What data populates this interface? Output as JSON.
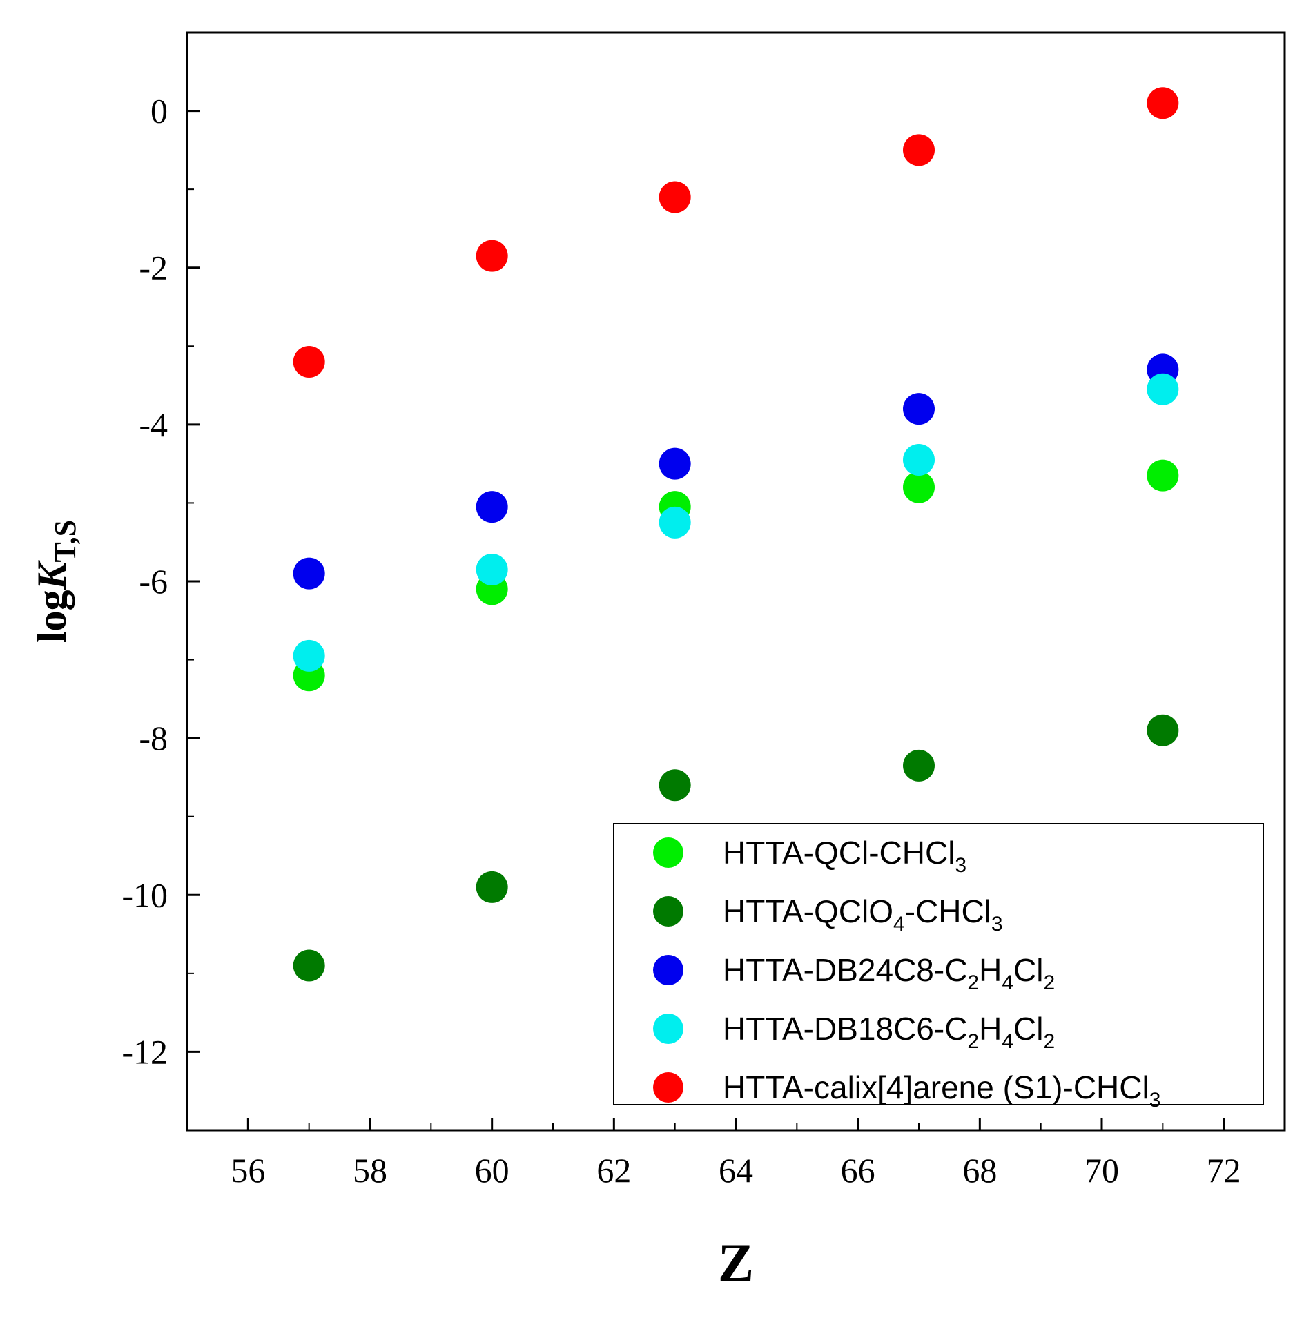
{
  "chart_data": {
    "type": "scatter",
    "title": "",
    "xlabel": "Z",
    "ylabel": {
      "main": "log",
      "italic": "K",
      "subscript": "T,S"
    },
    "xlim": [
      55,
      73
    ],
    "ylim": [
      -13,
      1
    ],
    "xticks": [
      56,
      58,
      60,
      62,
      64,
      66,
      68,
      70,
      72
    ],
    "xtick_labels": [
      "56",
      "58",
      "60",
      "62",
      "64",
      "66",
      "68",
      "70",
      "72"
    ],
    "yticks": [
      0,
      -2,
      -4,
      -6,
      -8,
      -10,
      -12
    ],
    "ytick_labels": [
      "0",
      "-2",
      "-4",
      "-6",
      "-8",
      "-10",
      "-12"
    ],
    "grid": false,
    "legend_position": "bottom-right",
    "x": [
      57,
      60,
      63,
      67,
      71
    ],
    "series": [
      {
        "name": "HTTA-QCl-CHCl3",
        "label_parts": [
          {
            "t": "HTTA-QCl-CHCl"
          },
          {
            "t": "3",
            "sub": true
          }
        ],
        "color": "#00ee00",
        "values": [
          -7.2,
          -6.1,
          -5.05,
          -4.8,
          -4.65
        ]
      },
      {
        "name": "HTTA-QClO4-CHCl3",
        "label_parts": [
          {
            "t": "HTTA-QClO"
          },
          {
            "t": "4",
            "sub": true
          },
          {
            "t": "-CHCl"
          },
          {
            "t": "3",
            "sub": true
          }
        ],
        "color": "#007a00",
        "values": [
          -10.9,
          -9.9,
          -8.6,
          -8.35,
          -7.9
        ]
      },
      {
        "name": "HTTA-DB24C8-C2H4Cl2",
        "label_parts": [
          {
            "t": "HTTA-DB24C8-C"
          },
          {
            "t": "2",
            "sub": true
          },
          {
            "t": "H"
          },
          {
            "t": "4",
            "sub": true
          },
          {
            "t": "Cl"
          },
          {
            "t": "2",
            "sub": true
          }
        ],
        "color": "#0000ee",
        "values": [
          -5.9,
          -5.05,
          -4.5,
          -3.8,
          -3.3
        ]
      },
      {
        "name": "HTTA-DB18C6-C2H4Cl2",
        "label_parts": [
          {
            "t": "HTTA-DB18C6-C"
          },
          {
            "t": "2",
            "sub": true
          },
          {
            "t": "H"
          },
          {
            "t": "4",
            "sub": true
          },
          {
            "t": "Cl"
          },
          {
            "t": "2",
            "sub": true
          }
        ],
        "color": "#00eeee",
        "values": [
          -6.95,
          -5.85,
          -5.25,
          -4.45,
          -3.55
        ]
      },
      {
        "name": "HTTA-calix[4]arene (S1)-CHCl3",
        "label_parts": [
          {
            "t": "HTTA-calix[4]arene (S1)-CHCl"
          },
          {
            "t": "3",
            "sub": true
          }
        ],
        "color": "#ff0000",
        "values": [
          -3.2,
          -1.85,
          -1.1,
          -0.5,
          0.1
        ]
      }
    ]
  }
}
